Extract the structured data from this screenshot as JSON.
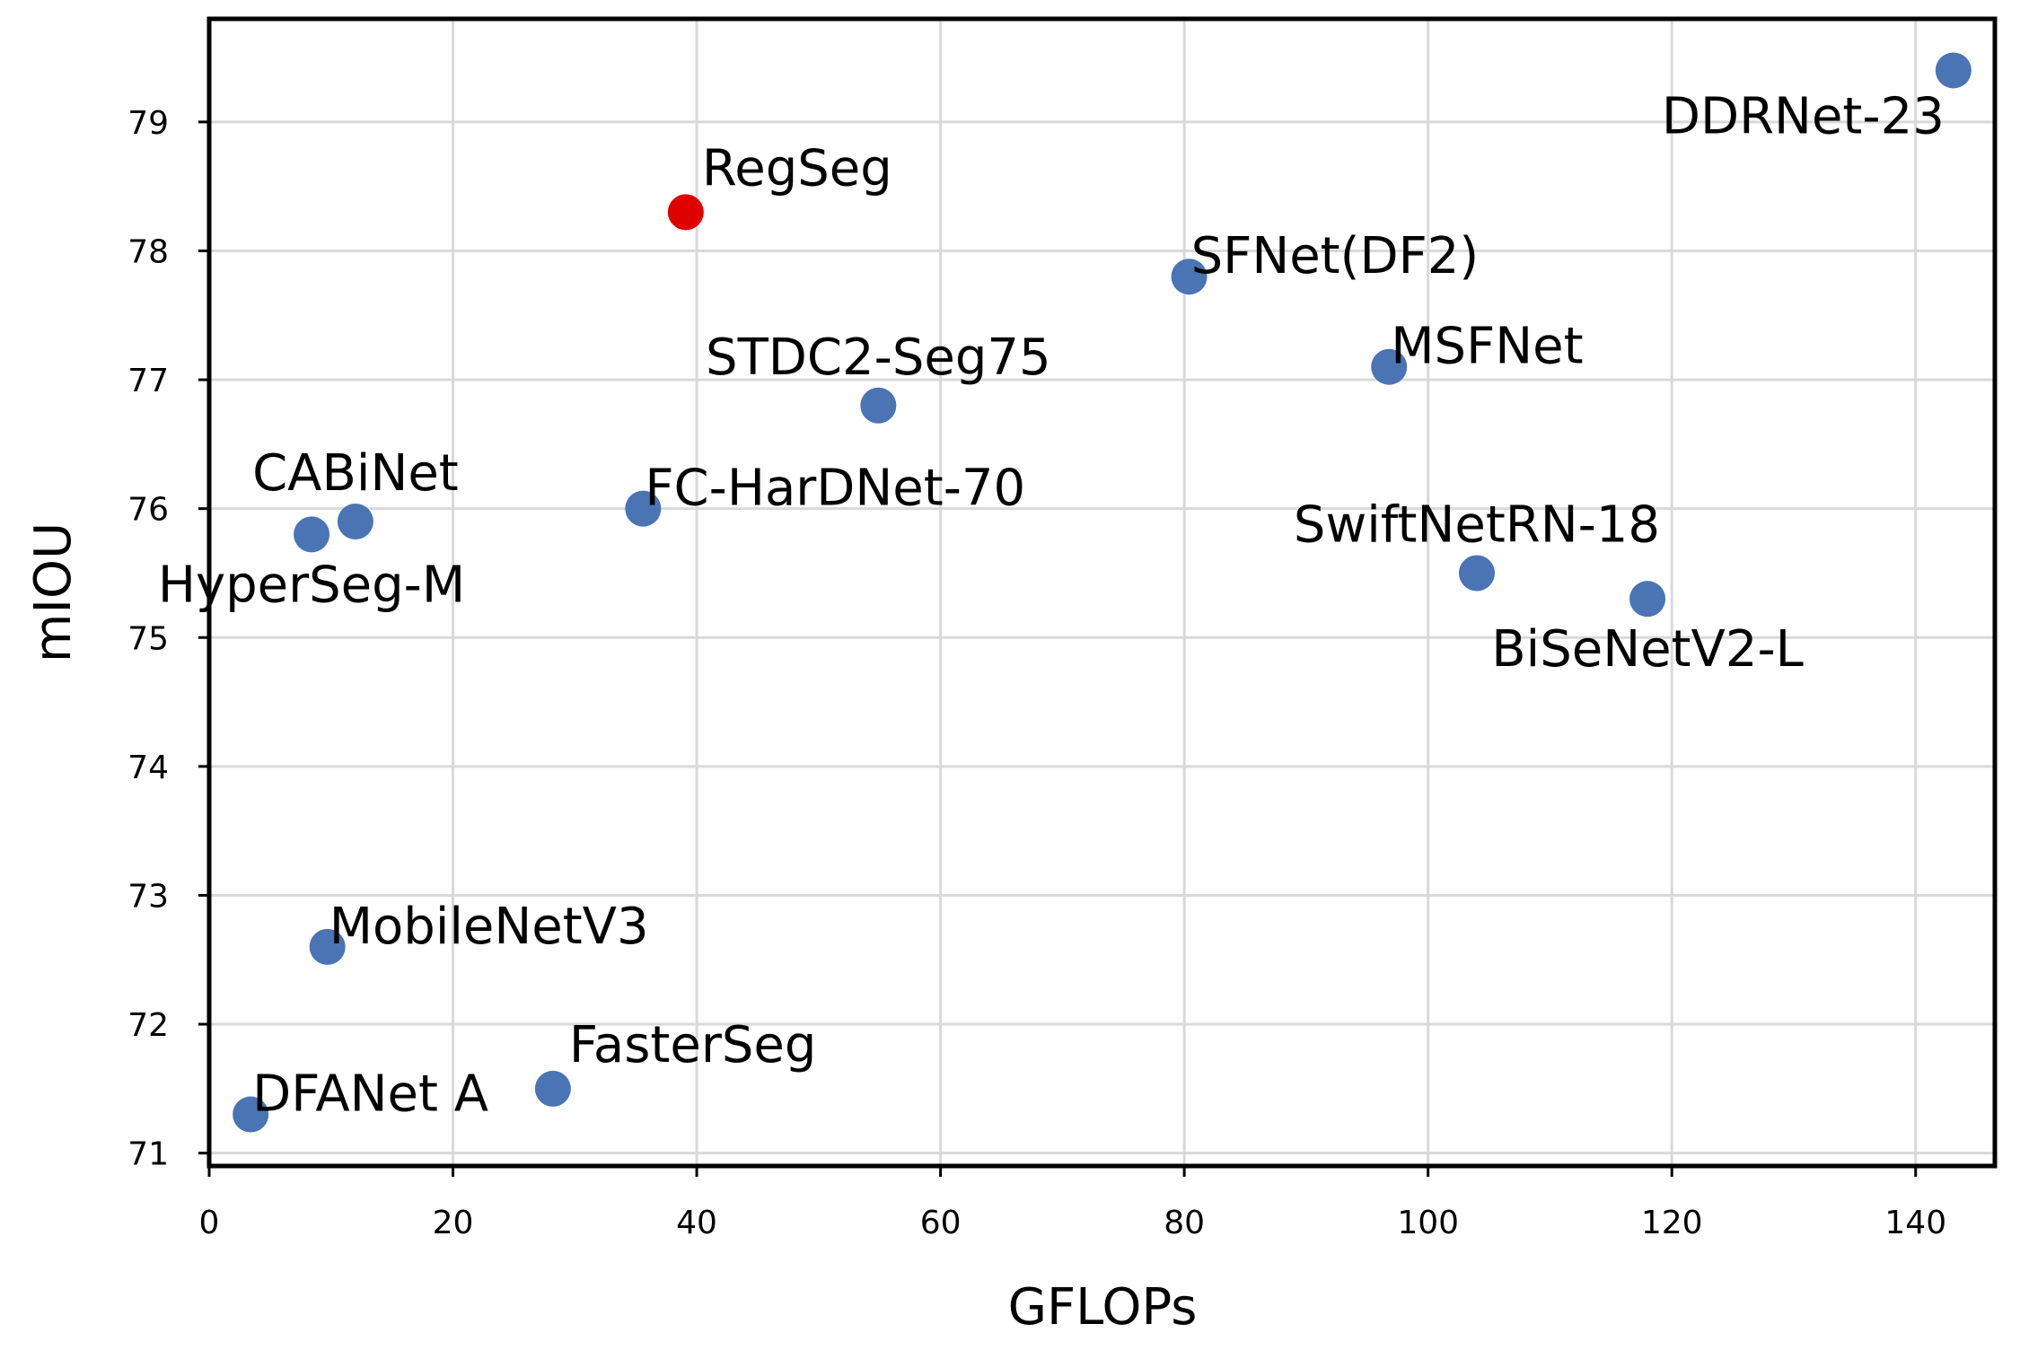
{
  "chart_data": {
    "type": "scatter",
    "title": "",
    "xlabel": "GFLOPs",
    "ylabel": "mIOU",
    "xlim": [
      0,
      146.5
    ],
    "ylim": [
      70.9,
      79.8
    ],
    "xticks": [
      0,
      20,
      40,
      60,
      80,
      100,
      120,
      140
    ],
    "yticks": [
      71,
      72,
      73,
      74,
      75,
      76,
      77,
      78,
      79
    ],
    "grid": true,
    "legend": "none",
    "colors": {
      "default": "#4a74b4",
      "highlight": "#e00000"
    },
    "points": [
      {
        "label": "DDRNet-23",
        "x": 143.1,
        "y": 79.4,
        "highlight": false,
        "label_pos": "below-left"
      },
      {
        "label": "RegSeg",
        "x": 39.1,
        "y": 78.3,
        "highlight": true,
        "label_pos": "above-right"
      },
      {
        "label": "SFNet(DF2)",
        "x": 80.4,
        "y": 77.8,
        "highlight": false,
        "label_pos": "right"
      },
      {
        "label": "MSFNet",
        "x": 96.8,
        "y": 77.1,
        "highlight": false,
        "label_pos": "right"
      },
      {
        "label": "STDC2-Seg75",
        "x": 54.9,
        "y": 76.8,
        "highlight": false,
        "label_pos": "above"
      },
      {
        "label": "FC-HarDNet-70",
        "x": 35.6,
        "y": 76.0,
        "highlight": false,
        "label_pos": "right"
      },
      {
        "label": "CABiNet",
        "x": 12.0,
        "y": 75.9,
        "highlight": false,
        "label_pos": "above"
      },
      {
        "label": "HyperSeg-M",
        "x": 8.4,
        "y": 75.8,
        "highlight": false,
        "label_pos": "below"
      },
      {
        "label": "SwiftNetRN-18",
        "x": 104.0,
        "y": 75.5,
        "highlight": false,
        "label_pos": "above"
      },
      {
        "label": "BiSeNetV2-L",
        "x": 118.0,
        "y": 75.3,
        "highlight": false,
        "label_pos": "below"
      },
      {
        "label": "MobileNetV3",
        "x": 9.7,
        "y": 72.6,
        "highlight": false,
        "label_pos": "right"
      },
      {
        "label": "FasterSeg",
        "x": 28.2,
        "y": 71.5,
        "highlight": false,
        "label_pos": "above-right"
      },
      {
        "label": "DFANet A",
        "x": 3.4,
        "y": 71.3,
        "highlight": false,
        "label_pos": "right"
      }
    ]
  }
}
